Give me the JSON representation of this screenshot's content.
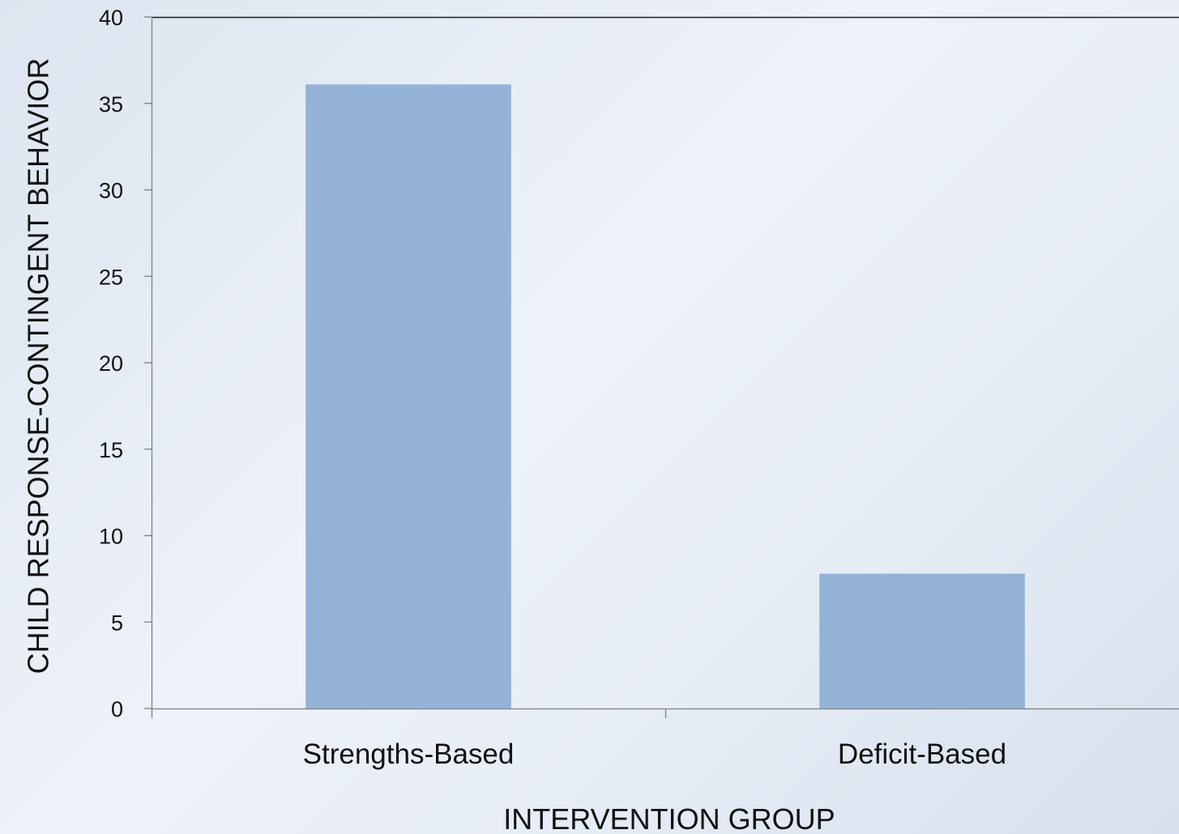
{
  "chart_data": {
    "type": "bar",
    "title": "",
    "xlabel": "INTERVENTION GROUP",
    "ylabel": "CHILD  RESPONSE-CONTINGENT BEHAVIOR",
    "categories": [
      "Strengths-Based",
      "Deficit-Based"
    ],
    "values": [
      36.1,
      7.8
    ],
    "ylim": [
      0,
      40
    ],
    "yticks": [
      0,
      5,
      10,
      15,
      20,
      25,
      30,
      35,
      40
    ],
    "grid": false,
    "legend": "none",
    "colors": {
      "bar": "#95b3d7",
      "axis": "#7f7f7f",
      "plot_border_top": "#1a1a1a"
    }
  }
}
